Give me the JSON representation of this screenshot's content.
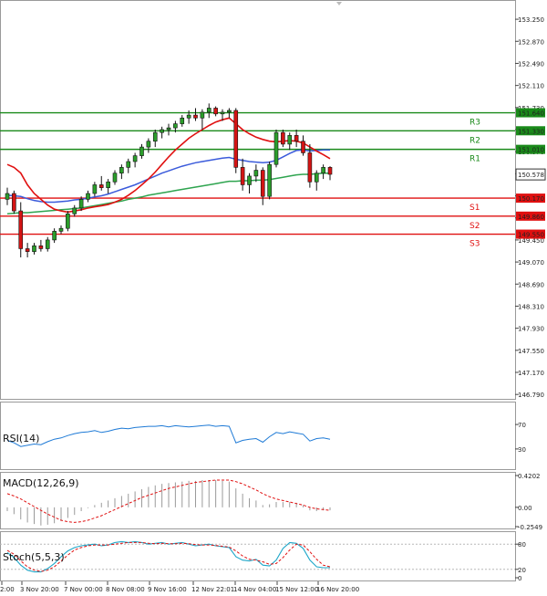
{
  "chart_data": {
    "type": "candlestick",
    "price_axis": {
      "ticks": [
        "153.250",
        "152.870",
        "152.490",
        "152.110",
        "151.730",
        "151.350",
        "150.970",
        "150.590",
        "150.210",
        "149.830",
        "149.450",
        "149.070",
        "148.690",
        "148.310",
        "147.930",
        "147.550",
        "147.170",
        "146.790"
      ],
      "ylim": [
        146.73,
        153.55
      ],
      "current_price": "150.578"
    },
    "levels": [
      {
        "name": "R3",
        "value": 151.64,
        "label": "151.640",
        "color": "#1a8a1a"
      },
      {
        "name": "R2",
        "value": 151.33,
        "label": "151.330",
        "color": "#1a8a1a"
      },
      {
        "name": "R1",
        "value": 151.01,
        "label": "151.010",
        "color": "#1a8a1a"
      },
      {
        "name": "S1",
        "value": 150.17,
        "label": "150.170",
        "color": "#e01010"
      },
      {
        "name": "S2",
        "value": 149.86,
        "label": "149.860",
        "color": "#e01010"
      },
      {
        "name": "S3",
        "value": 149.55,
        "label": "149.550",
        "color": "#e01010"
      }
    ],
    "x_labels": [
      "2:00",
      "3 Nov 20:00",
      "7 Nov 00:00",
      "8 Nov 08:00",
      "9 Nov 16:00",
      "12 Nov 22:01",
      "14 Nov 04:00",
      "15 Nov 12:00",
      "16 Nov 20:00"
    ],
    "candles": [
      [
        150.15,
        150.35,
        150.05,
        150.25
      ],
      [
        150.25,
        150.3,
        149.9,
        149.95
      ],
      [
        149.95,
        150.1,
        149.15,
        149.3
      ],
      [
        149.3,
        149.4,
        149.15,
        149.25
      ],
      [
        149.25,
        149.4,
        149.2,
        149.35
      ],
      [
        149.35,
        149.45,
        149.25,
        149.3
      ],
      [
        149.3,
        149.5,
        149.25,
        149.45
      ],
      [
        149.45,
        149.65,
        149.4,
        149.6
      ],
      [
        149.6,
        149.7,
        149.55,
        149.65
      ],
      [
        149.65,
        149.95,
        149.6,
        149.9
      ],
      [
        149.9,
        150.05,
        149.85,
        150.0
      ],
      [
        150.0,
        150.2,
        149.95,
        150.15
      ],
      [
        150.15,
        150.3,
        150.1,
        150.25
      ],
      [
        150.25,
        150.45,
        150.2,
        150.4
      ],
      [
        150.4,
        150.55,
        150.3,
        150.35
      ],
      [
        150.35,
        150.5,
        150.25,
        150.45
      ],
      [
        150.45,
        150.65,
        150.4,
        150.6
      ],
      [
        150.6,
        150.75,
        150.5,
        150.7
      ],
      [
        150.7,
        150.85,
        150.6,
        150.8
      ],
      [
        150.8,
        150.95,
        150.7,
        150.9
      ],
      [
        150.9,
        151.1,
        150.85,
        151.05
      ],
      [
        151.05,
        151.2,
        150.95,
        151.15
      ],
      [
        151.15,
        151.35,
        151.05,
        151.3
      ],
      [
        151.3,
        151.4,
        151.2,
        151.35
      ],
      [
        151.35,
        151.45,
        151.25,
        151.38
      ],
      [
        151.38,
        151.5,
        151.3,
        151.45
      ],
      [
        151.45,
        151.6,
        151.4,
        151.55
      ],
      [
        151.55,
        151.68,
        151.45,
        151.6
      ],
      [
        151.6,
        151.72,
        151.5,
        151.55
      ],
      [
        151.55,
        151.7,
        151.35,
        151.65
      ],
      [
        151.65,
        151.8,
        151.55,
        151.72
      ],
      [
        151.72,
        151.75,
        151.58,
        151.62
      ],
      [
        151.62,
        151.7,
        151.5,
        151.65
      ],
      [
        151.65,
        151.72,
        151.55,
        151.68
      ],
      [
        151.68,
        151.72,
        150.6,
        150.7
      ],
      [
        150.7,
        150.85,
        150.3,
        150.4
      ],
      [
        150.4,
        150.6,
        150.25,
        150.55
      ],
      [
        150.55,
        150.75,
        150.45,
        150.65
      ],
      [
        150.65,
        150.7,
        150.05,
        150.2
      ],
      [
        150.2,
        150.8,
        150.15,
        150.75
      ],
      [
        150.75,
        151.35,
        150.7,
        151.3
      ],
      [
        151.3,
        151.35,
        151.05,
        151.1
      ],
      [
        151.1,
        151.3,
        151.0,
        151.25
      ],
      [
        151.25,
        151.35,
        151.05,
        151.15
      ],
      [
        151.15,
        151.25,
        150.9,
        150.95
      ],
      [
        150.95,
        151.1,
        150.35,
        150.45
      ],
      [
        150.45,
        150.65,
        150.3,
        150.6
      ],
      [
        150.6,
        150.75,
        150.5,
        150.7
      ],
      [
        150.7,
        150.72,
        150.48,
        150.58
      ]
    ],
    "ma_red": [
      150.75,
      150.7,
      150.6,
      150.4,
      150.25,
      150.15,
      150.05,
      149.98,
      149.95,
      149.93,
      149.95,
      149.97,
      150.0,
      150.02,
      150.04,
      150.06,
      150.1,
      150.15,
      150.22,
      150.3,
      150.4,
      150.5,
      150.62,
      150.75,
      150.88,
      151.0,
      151.1,
      151.2,
      151.28,
      151.35,
      151.42,
      151.48,
      151.52,
      151.55,
      151.45,
      151.35,
      151.28,
      151.22,
      151.18,
      151.15,
      151.14,
      151.15,
      151.16,
      151.15,
      151.12,
      151.05,
      150.98,
      150.92,
      150.85
    ],
    "ma_blue": [
      150.22,
      150.21,
      150.2,
      150.16,
      150.13,
      150.11,
      150.1,
      150.1,
      150.11,
      150.12,
      150.14,
      150.15,
      150.17,
      150.19,
      150.21,
      150.24,
      150.28,
      150.32,
      150.36,
      150.4,
      150.45,
      150.5,
      150.55,
      150.6,
      150.64,
      150.68,
      150.72,
      150.75,
      150.78,
      150.8,
      150.82,
      150.84,
      150.86,
      150.87,
      150.84,
      150.82,
      150.8,
      150.79,
      150.78,
      150.79,
      150.82,
      150.88,
      150.94,
      150.99,
      151.0,
      150.98,
      150.99,
      151.0,
      151.0
    ],
    "ma_green": [
      149.9,
      149.91,
      149.92,
      149.92,
      149.93,
      149.94,
      149.95,
      149.96,
      149.97,
      149.98,
      149.99,
      150.0,
      150.02,
      150.04,
      150.06,
      150.08,
      150.1,
      150.12,
      150.15,
      150.17,
      150.19,
      150.22,
      150.24,
      150.26,
      150.28,
      150.3,
      150.32,
      150.34,
      150.36,
      150.38,
      150.4,
      150.42,
      150.44,
      150.46,
      150.46,
      150.47,
      150.47,
      150.48,
      150.48,
      150.49,
      150.51,
      150.53,
      150.55,
      150.57,
      150.58,
      150.58,
      150.59,
      150.6,
      150.6
    ],
    "rsi": {
      "label": "RSI(14)",
      "ticks": [
        "70",
        "30"
      ],
      "values": [
        44,
        40,
        34,
        36,
        38,
        37,
        42,
        46,
        48,
        52,
        55,
        57,
        58,
        60,
        57,
        59,
        62,
        64,
        63,
        65,
        66,
        67,
        67,
        68,
        66,
        68,
        67,
        66,
        67,
        68,
        69,
        67,
        68,
        67,
        40,
        44,
        46,
        47,
        41,
        50,
        57,
        55,
        58,
        56,
        54,
        43,
        47,
        48,
        46
      ]
    },
    "macd": {
      "label": "MACD(12,26,9)",
      "ticks": [
        "0.4202",
        "0.00",
        "-0.2549"
      ],
      "hist": [
        -0.05,
        -0.09,
        -0.16,
        -0.2,
        -0.22,
        -0.24,
        -0.23,
        -0.21,
        -0.18,
        -0.14,
        -0.1,
        -0.05,
        -0.01,
        0.03,
        0.06,
        0.09,
        0.12,
        0.15,
        0.18,
        0.21,
        0.24,
        0.27,
        0.29,
        0.31,
        0.32,
        0.33,
        0.34,
        0.35,
        0.35,
        0.36,
        0.36,
        0.36,
        0.35,
        0.34,
        0.25,
        0.18,
        0.12,
        0.09,
        0.03,
        0.04,
        0.07,
        0.07,
        0.07,
        0.06,
        0.03,
        -0.04,
        -0.05,
        -0.04,
        -0.04
      ],
      "signal": [
        0.18,
        0.15,
        0.11,
        0.06,
        0.01,
        -0.04,
        -0.09,
        -0.13,
        -0.17,
        -0.19,
        -0.2,
        -0.19,
        -0.17,
        -0.14,
        -0.11,
        -0.07,
        -0.03,
        0.01,
        0.05,
        0.09,
        0.13,
        0.16,
        0.19,
        0.22,
        0.25,
        0.27,
        0.29,
        0.31,
        0.33,
        0.34,
        0.35,
        0.36,
        0.36,
        0.36,
        0.34,
        0.31,
        0.27,
        0.23,
        0.18,
        0.14,
        0.11,
        0.09,
        0.07,
        0.05,
        0.03,
        0.0,
        -0.02,
        -0.03,
        -0.04
      ]
    },
    "stoch": {
      "label": "Stoch(5,5,3)",
      "ticks": [
        "80",
        "20",
        "0"
      ],
      "k": [
        60,
        48,
        30,
        18,
        14,
        14,
        22,
        34,
        50,
        64,
        72,
        76,
        78,
        80,
        76,
        78,
        84,
        86,
        84,
        86,
        84,
        80,
        82,
        84,
        80,
        82,
        84,
        80,
        76,
        78,
        80,
        76,
        74,
        72,
        50,
        42,
        40,
        44,
        30,
        28,
        42,
        70,
        84,
        82,
        70,
        42,
        26,
        24,
        24
      ],
      "d": [
        65,
        56,
        40,
        26,
        18,
        15,
        18,
        26,
        40,
        54,
        66,
        72,
        76,
        78,
        78,
        78,
        80,
        82,
        84,
        84,
        84,
        82,
        81,
        82,
        81,
        81,
        82,
        81,
        79,
        78,
        78,
        77,
        75,
        73,
        64,
        52,
        44,
        42,
        38,
        32,
        34,
        48,
        66,
        80,
        78,
        62,
        44,
        30,
        26
      ]
    }
  }
}
